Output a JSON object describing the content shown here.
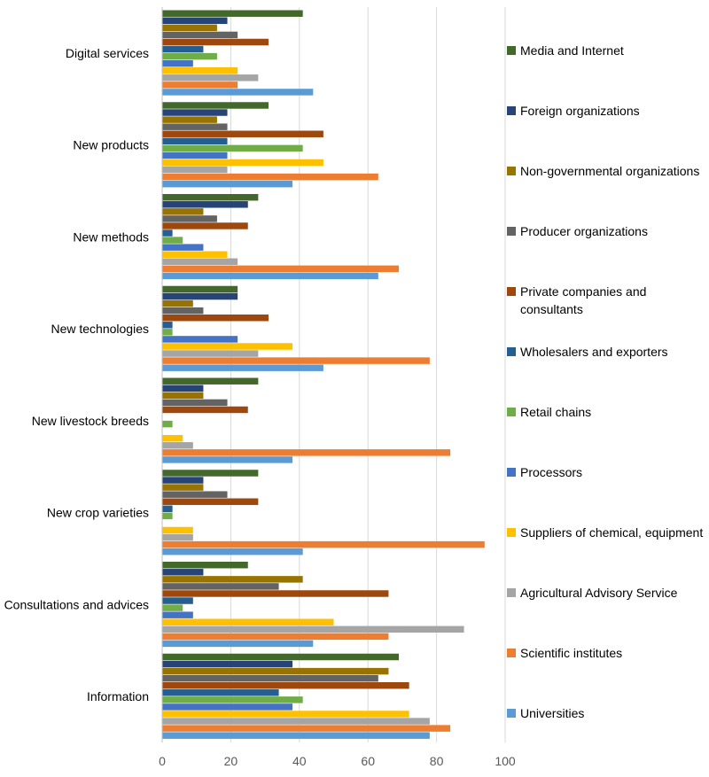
{
  "chart_data": {
    "type": "bar",
    "orientation": "horizontal",
    "categories": [
      "Digital services",
      "New products",
      "New methods",
      "New technologies",
      "New livestock breeds",
      "New crop varieties",
      "Consultations and advices",
      "Information"
    ],
    "xlim": [
      0,
      100
    ],
    "xticks": [
      "0",
      "20",
      "40",
      "60",
      "80",
      "100"
    ],
    "grid": "vertical",
    "legend_position": "right",
    "series": [
      {
        "name": "Media and Internet",
        "color": "#43682B",
        "values": [
          41,
          31,
          28,
          22,
          28,
          28,
          25,
          69
        ]
      },
      {
        "name": "Foreign organizations",
        "color": "#264478",
        "values": [
          19,
          19,
          25,
          22,
          12,
          12,
          12,
          38
        ]
      },
      {
        "name": "Non-governmental organizations",
        "color": "#997300",
        "values": [
          16,
          16,
          12,
          9,
          12,
          12,
          41,
          66
        ]
      },
      {
        "name": "Producer organizations",
        "color": "#636363",
        "values": [
          22,
          19,
          16,
          12,
          19,
          19,
          34,
          63
        ]
      },
      {
        "name": "Private companies and consultants",
        "color": "#9E480E",
        "values": [
          31,
          47,
          25,
          31,
          25,
          28,
          66,
          72
        ]
      },
      {
        "name": "Wholesalers and exporters",
        "color": "#255E91",
        "values": [
          12,
          19,
          3,
          3,
          0,
          3,
          9,
          34
        ]
      },
      {
        "name": "Retail chains",
        "color": "#70AD47",
        "values": [
          16,
          41,
          6,
          3,
          3,
          3,
          6,
          41
        ]
      },
      {
        "name": "Processors",
        "color": "#4472C4",
        "values": [
          9,
          19,
          12,
          22,
          0,
          0,
          9,
          38
        ]
      },
      {
        "name": "Suppliers of chemical, equipment",
        "color": "#FFC000",
        "values": [
          22,
          47,
          19,
          38,
          6,
          9,
          50,
          72
        ]
      },
      {
        "name": "Agricultural Advisory Service",
        "color": "#A5A5A5",
        "values": [
          28,
          19,
          22,
          28,
          9,
          9,
          88,
          78
        ]
      },
      {
        "name": "Scientific institutes",
        "color": "#ED7D31",
        "values": [
          22,
          63,
          69,
          78,
          84,
          94,
          66,
          84
        ]
      },
      {
        "name": "Universities",
        "color": "#5B9BD5",
        "values": [
          44,
          38,
          63,
          47,
          38,
          41,
          44,
          78
        ]
      }
    ]
  }
}
